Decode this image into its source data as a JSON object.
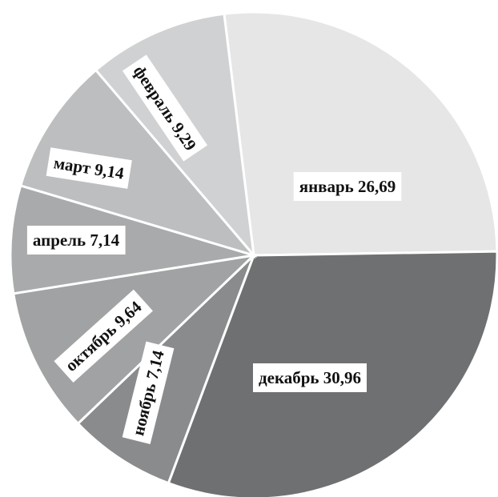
{
  "chart_data": {
    "type": "pie",
    "title": "",
    "slices": [
      {
        "label": "январь",
        "value": 26.69,
        "display": "январь 26,69",
        "color": "#e6e6e6"
      },
      {
        "label": "декабрь",
        "value": 30.96,
        "display": "декабрь 30,96",
        "color": "#6f7071"
      },
      {
        "label": "ноябрь",
        "value": 7.14,
        "display": "ноябрь 7,14",
        "color": "#8a8b8c"
      },
      {
        "label": "октябрь",
        "value": 9.64,
        "display": "октябрь 9,64",
        "color": "#a1a2a3"
      },
      {
        "label": "апрель",
        "value": 7.14,
        "display": "апрель 7,14",
        "color": "#a9aaab"
      },
      {
        "label": "март",
        "value": 9.14,
        "display": "март 9,14",
        "color": "#bdbebf"
      },
      {
        "label": "февраль",
        "value": 9.29,
        "display": "февраль 9,29",
        "color": "#d0d1d2"
      }
    ],
    "legend": "none",
    "grid": false
  }
}
